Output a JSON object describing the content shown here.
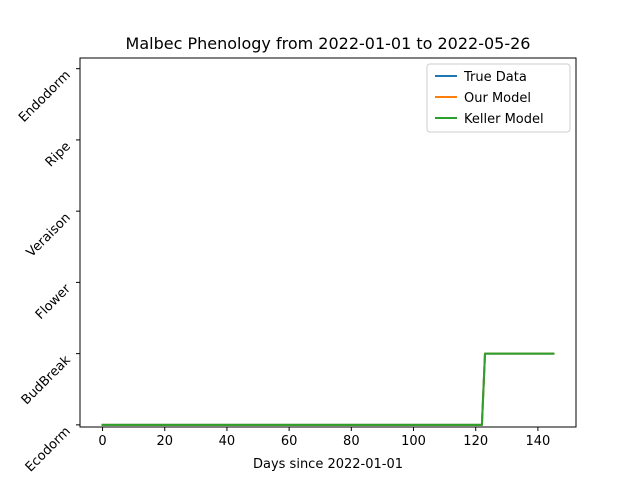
{
  "chart_data": {
    "type": "line",
    "title": "Malbec Phenology from 2022-01-01 to 2022-05-26",
    "xlabel": "Days since 2022-01-01",
    "ylabel": "",
    "xlim": [
      -7.25,
      152.25
    ],
    "ylim": [
      -0.03,
      5.15
    ],
    "x_ticks": [
      0,
      20,
      40,
      60,
      80,
      100,
      120,
      140
    ],
    "y_tick_labels": [
      "Ecodorm",
      "BudBreak",
      "Flower",
      "Veraison",
      "Ripe",
      "Endodorm"
    ],
    "y_tick_values": [
      0,
      1,
      2,
      3,
      4,
      5
    ],
    "legend_position": "top-right",
    "grid": false,
    "series": [
      {
        "name": "True Data",
        "color": "#1f77b4",
        "x": [
          0,
          122,
          123,
          145
        ],
        "y": [
          0,
          0,
          1,
          1
        ]
      },
      {
        "name": "Our Model",
        "color": "#ff7f0e",
        "x": [
          0,
          122,
          123,
          145
        ],
        "y": [
          0,
          0,
          1,
          1
        ]
      },
      {
        "name": "Keller Model",
        "color": "#2ca02c",
        "x": [
          0,
          122,
          123,
          145
        ],
        "y": [
          0,
          0,
          1,
          1
        ]
      }
    ]
  }
}
